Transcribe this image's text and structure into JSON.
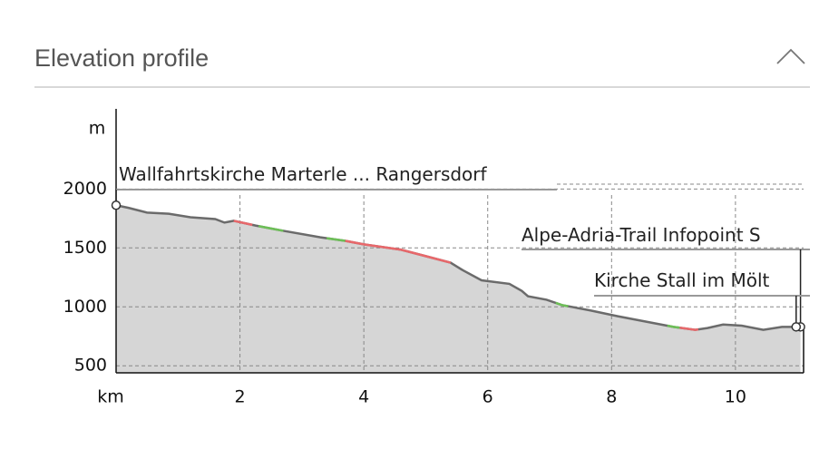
{
  "header": {
    "title": "Elevation profile"
  },
  "chart_data": {
    "type": "area",
    "x_label": "km",
    "y_label": "m",
    "xlim": [
      0,
      11.1
    ],
    "ylim": [
      440,
      2680
    ],
    "xticks": [
      2,
      4,
      6,
      8,
      10
    ],
    "yticks": [
      500,
      1000,
      1500,
      2000
    ],
    "grid": true,
    "x": [
      0,
      0.2,
      0.5,
      0.85,
      1.2,
      1.6,
      1.75,
      1.9,
      2.25,
      2.7,
      3.3,
      3.7,
      4.0,
      4.6,
      5.0,
      5.4,
      5.6,
      5.9,
      6.35,
      6.55,
      6.65,
      6.95,
      7.2,
      7.65,
      8.1,
      8.55,
      9.0,
      9.35,
      9.55,
      9.8,
      10.1,
      10.45,
      10.75,
      11.05
    ],
    "series": [
      {
        "color": "#6b6b6b",
        "fill": "#d6d6d6",
        "values": [
          1862,
          1840,
          1800,
          1790,
          1760,
          1745,
          1715,
          1730,
          1690,
          1645,
          1590,
          1560,
          1530,
          1485,
          1430,
          1375,
          1310,
          1225,
          1195,
          1135,
          1090,
          1060,
          1015,
          970,
          920,
          875,
          830,
          805,
          820,
          850,
          840,
          805,
          830,
          830
        ]
      }
    ],
    "highlights": [
      {
        "from": 1.9,
        "to": 2.2,
        "color": "#e8686b"
      },
      {
        "from": 2.3,
        "to": 2.7,
        "color": "#6dbf57"
      },
      {
        "from": 3.4,
        "to": 3.7,
        "color": "#6dbf57"
      },
      {
        "from": 3.7,
        "to": 5.4,
        "color": "#e8686b"
      },
      {
        "from": 7.1,
        "to": 7.3,
        "color": "#6dbf57"
      },
      {
        "from": 8.9,
        "to": 9.1,
        "color": "#6dbf57"
      },
      {
        "from": 9.1,
        "to": 9.4,
        "color": "#e8686b"
      }
    ],
    "waypoints": [
      {
        "label": "Wallfahrtskirche Marterle ... Rangersdorf",
        "x": 0,
        "y": 1862
      },
      {
        "label": "Alpe-Adria-Trail Infopoint S",
        "x": 11.05,
        "y": 830
      },
      {
        "label": "Kirche Stall im Mölt",
        "x": 10.98,
        "y": 830
      }
    ]
  }
}
